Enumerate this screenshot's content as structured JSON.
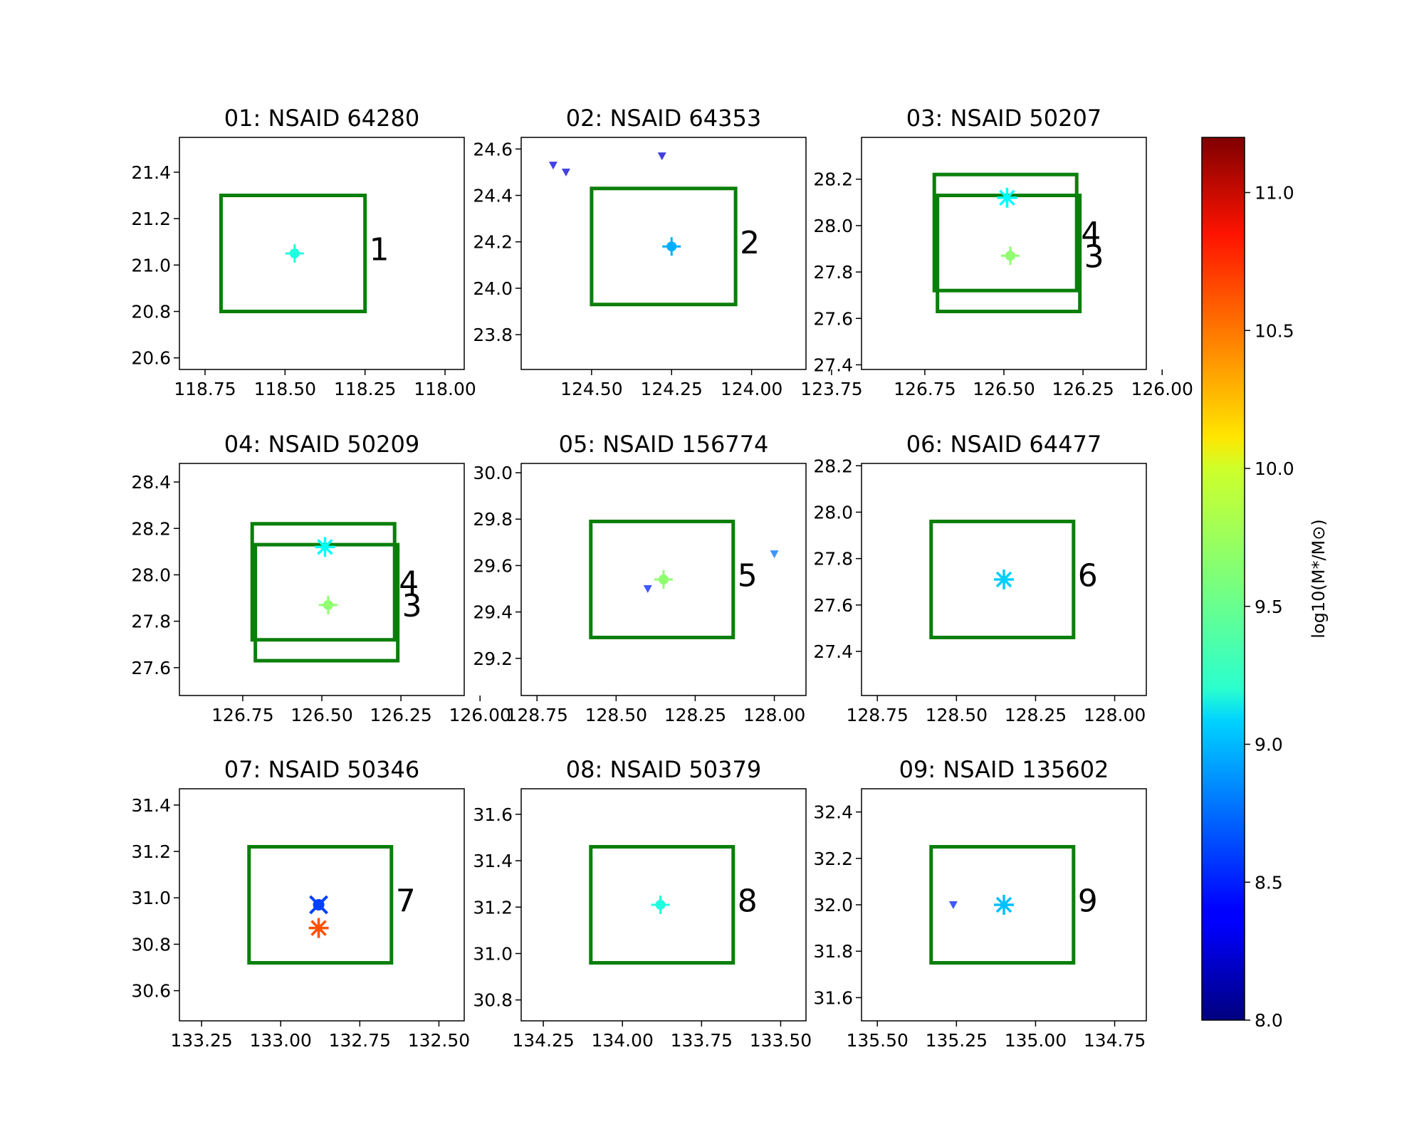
{
  "figure": {
    "colorbar": {
      "label": "log10(M*/M⊙)",
      "ticks": [
        "8.0",
        "8.5",
        "9.0",
        "9.5",
        "10.0",
        "10.5",
        "11.0"
      ],
      "range": [
        8.0,
        11.2
      ],
      "colormap": "jet"
    }
  },
  "chart_data": [
    {
      "type": "scatter",
      "title": "01: NSAID 64280",
      "xlim": [
        118.83,
        117.94
      ],
      "ylim": [
        20.55,
        21.55
      ],
      "xticks": [
        118.75,
        118.5,
        118.25,
        118.0
      ],
      "xtick_labels": [
        "118.75",
        "118.50",
        "118.25",
        "118.00"
      ],
      "yticks": [
        20.6,
        20.8,
        21.0,
        21.2,
        21.4
      ],
      "ytick_labels": [
        "20.6",
        "20.8",
        "21.0",
        "21.2",
        "21.4"
      ],
      "boxes": [
        {
          "x0": 118.7,
          "x1": 118.25,
          "y0": 20.8,
          "y1": 21.3,
          "label": "1",
          "label_y": 21.1
        }
      ],
      "points": [
        {
          "x": 118.47,
          "y": 21.05,
          "mass": 9.3,
          "marker": "plus"
        }
      ]
    },
    {
      "type": "scatter",
      "title": "02: NSAID 64353",
      "xlim": [
        124.72,
        123.83
      ],
      "ylim": [
        23.65,
        24.65
      ],
      "xticks": [
        124.5,
        124.25,
        124.0,
        123.75
      ],
      "xtick_labels": [
        "124.50",
        "124.25",
        "124.00",
        "123.75"
      ],
      "yticks": [
        23.8,
        24.0,
        24.2,
        24.4,
        24.6
      ],
      "ytick_labels": [
        "23.8",
        "24.0",
        "24.2",
        "24.4",
        "24.6"
      ],
      "boxes": [
        {
          "x0": 124.5,
          "x1": 124.05,
          "y0": 23.93,
          "y1": 24.43,
          "label": "2",
          "label_y": 24.23
        }
      ],
      "points": [
        {
          "x": 124.25,
          "y": 24.18,
          "mass": 8.95,
          "marker": "plus"
        },
        {
          "x": 124.62,
          "y": 24.53,
          "mass": 8.3,
          "marker": "triangle"
        },
        {
          "x": 124.58,
          "y": 24.5,
          "mass": 8.3,
          "marker": "triangle"
        },
        {
          "x": 124.28,
          "y": 24.57,
          "mass": 8.3,
          "marker": "triangle"
        }
      ]
    },
    {
      "type": "scatter",
      "title": "03: NSAID 50207",
      "xlim": [
        126.95,
        126.05
      ],
      "ylim": [
        27.38,
        28.38
      ],
      "xticks": [
        126.75,
        126.5,
        126.25,
        126.0
      ],
      "xtick_labels": [
        "126.75",
        "126.50",
        "126.25",
        "126.00"
      ],
      "yticks": [
        27.4,
        27.6,
        27.8,
        28.0,
        28.2
      ],
      "ytick_labels": [
        "27.4",
        "27.6",
        "27.8",
        "28.0",
        "28.2"
      ],
      "boxes": [
        {
          "x0": 126.72,
          "x1": 126.27,
          "y0": 27.72,
          "y1": 28.22,
          "label": "4",
          "label_y": 28.0
        },
        {
          "x0": 126.71,
          "x1": 126.26,
          "y0": 27.63,
          "y1": 28.13,
          "label": "3",
          "label_y": 27.9
        }
      ],
      "points": [
        {
          "x": 126.49,
          "y": 28.12,
          "mass": 9.2,
          "marker": "star"
        },
        {
          "x": 126.48,
          "y": 27.87,
          "mass": 9.65,
          "marker": "plus"
        }
      ]
    },
    {
      "type": "scatter",
      "title": "04: NSAID 50209",
      "xlim": [
        126.95,
        126.05
      ],
      "ylim": [
        27.48,
        28.48
      ],
      "xticks": [
        126.75,
        126.5,
        126.25,
        126.0
      ],
      "xtick_labels": [
        "126.75",
        "126.50",
        "126.25",
        "126.00"
      ],
      "yticks": [
        27.6,
        27.8,
        28.0,
        28.2,
        28.4
      ],
      "ytick_labels": [
        "27.6",
        "27.8",
        "28.0",
        "28.2",
        "28.4"
      ],
      "boxes": [
        {
          "x0": 126.72,
          "x1": 126.27,
          "y0": 27.72,
          "y1": 28.22,
          "label": "4",
          "label_y": 28.0
        },
        {
          "x0": 126.71,
          "x1": 126.26,
          "y0": 27.63,
          "y1": 28.13,
          "label": "3",
          "label_y": 27.9
        }
      ],
      "points": [
        {
          "x": 126.49,
          "y": 28.12,
          "mass": 9.2,
          "marker": "star"
        },
        {
          "x": 126.48,
          "y": 27.87,
          "mass": 9.65,
          "marker": "plus"
        }
      ]
    },
    {
      "type": "scatter",
      "title": "05: NSAID 156774",
      "xlim": [
        128.8,
        127.9
      ],
      "ylim": [
        29.04,
        30.04
      ],
      "xticks": [
        128.75,
        128.5,
        128.25,
        128.0
      ],
      "xtick_labels": [
        "128.75",
        "128.50",
        "128.25",
        "128.00"
      ],
      "yticks": [
        29.2,
        29.4,
        29.6,
        29.8,
        30.0
      ],
      "ytick_labels": [
        "29.2",
        "29.4",
        "29.6",
        "29.8",
        "30.0"
      ],
      "boxes": [
        {
          "x0": 128.58,
          "x1": 128.13,
          "y0": 29.29,
          "y1": 29.79,
          "label": "5",
          "label_y": 29.59
        }
      ],
      "points": [
        {
          "x": 128.35,
          "y": 29.54,
          "mass": 9.65,
          "marker": "plus"
        },
        {
          "x": 128.4,
          "y": 29.5,
          "mass": 8.5,
          "marker": "triangle"
        },
        {
          "x": 128.0,
          "y": 29.65,
          "mass": 8.75,
          "marker": "triangle"
        }
      ]
    },
    {
      "type": "scatter",
      "title": "06: NSAID 64477",
      "xlim": [
        128.8,
        127.9
      ],
      "ylim": [
        27.21,
        28.21
      ],
      "xticks": [
        128.75,
        128.5,
        128.25,
        128.0
      ],
      "xtick_labels": [
        "128.75",
        "128.50",
        "128.25",
        "128.00"
      ],
      "yticks": [
        27.4,
        27.6,
        27.8,
        28.0,
        28.2
      ],
      "ytick_labels": [
        "27.4",
        "27.6",
        "27.8",
        "28.0",
        "28.2"
      ],
      "boxes": [
        {
          "x0": 128.58,
          "x1": 128.13,
          "y0": 27.46,
          "y1": 27.96,
          "label": "6",
          "label_y": 27.76
        }
      ],
      "points": [
        {
          "x": 128.35,
          "y": 27.71,
          "mass": 9.05,
          "marker": "star"
        }
      ]
    },
    {
      "type": "scatter",
      "title": "07: NSAID 50346",
      "xlim": [
        133.32,
        132.42
      ],
      "ylim": [
        30.47,
        31.47
      ],
      "xticks": [
        133.25,
        133.0,
        132.75,
        132.5
      ],
      "xtick_labels": [
        "133.25",
        "133.00",
        "132.75",
        "132.50"
      ],
      "yticks": [
        30.6,
        30.8,
        31.0,
        31.2,
        31.4
      ],
      "ytick_labels": [
        "30.6",
        "30.8",
        "31.0",
        "31.2",
        "31.4"
      ],
      "boxes": [
        {
          "x0": 133.1,
          "x1": 132.65,
          "y0": 30.72,
          "y1": 31.22,
          "label": "7",
          "label_y": 31.02
        }
      ],
      "points": [
        {
          "x": 132.88,
          "y": 30.97,
          "mass": 8.6,
          "marker": "x-dot"
        },
        {
          "x": 132.88,
          "y": 30.87,
          "mass": 10.55,
          "marker": "star"
        }
      ]
    },
    {
      "type": "scatter",
      "title": "08: NSAID 50379",
      "xlim": [
        134.32,
        133.42
      ],
      "ylim": [
        30.71,
        31.71
      ],
      "xticks": [
        134.25,
        134.0,
        133.75,
        133.5
      ],
      "xtick_labels": [
        "134.25",
        "134.00",
        "133.75",
        "133.50"
      ],
      "yticks": [
        30.8,
        31.0,
        31.2,
        31.4,
        31.6
      ],
      "ytick_labels": [
        "30.8",
        "31.0",
        "31.2",
        "31.4",
        "31.6"
      ],
      "boxes": [
        {
          "x0": 134.1,
          "x1": 133.65,
          "y0": 30.96,
          "y1": 31.46,
          "label": "8",
          "label_y": 31.26
        }
      ],
      "points": [
        {
          "x": 133.88,
          "y": 31.21,
          "mass": 9.3,
          "marker": "plus"
        }
      ]
    },
    {
      "type": "scatter",
      "title": "09: NSAID 135602",
      "xlim": [
        135.55,
        134.65
      ],
      "ylim": [
        31.5,
        32.5
      ],
      "xticks": [
        135.5,
        135.25,
        135.0,
        134.75
      ],
      "xtick_labels": [
        "135.50",
        "135.25",
        "135.00",
        "134.75"
      ],
      "yticks": [
        31.6,
        31.8,
        32.0,
        32.2,
        32.4
      ],
      "ytick_labels": [
        "31.6",
        "31.8",
        "32.0",
        "32.2",
        "32.4"
      ],
      "boxes": [
        {
          "x0": 135.33,
          "x1": 134.88,
          "y0": 31.75,
          "y1": 32.25,
          "label": "9",
          "label_y": 32.05
        }
      ],
      "points": [
        {
          "x": 135.1,
          "y": 32.0,
          "mass": 9.0,
          "marker": "star"
        },
        {
          "x": 135.26,
          "y": 32.0,
          "mass": 8.5,
          "marker": "triangle"
        }
      ]
    }
  ]
}
